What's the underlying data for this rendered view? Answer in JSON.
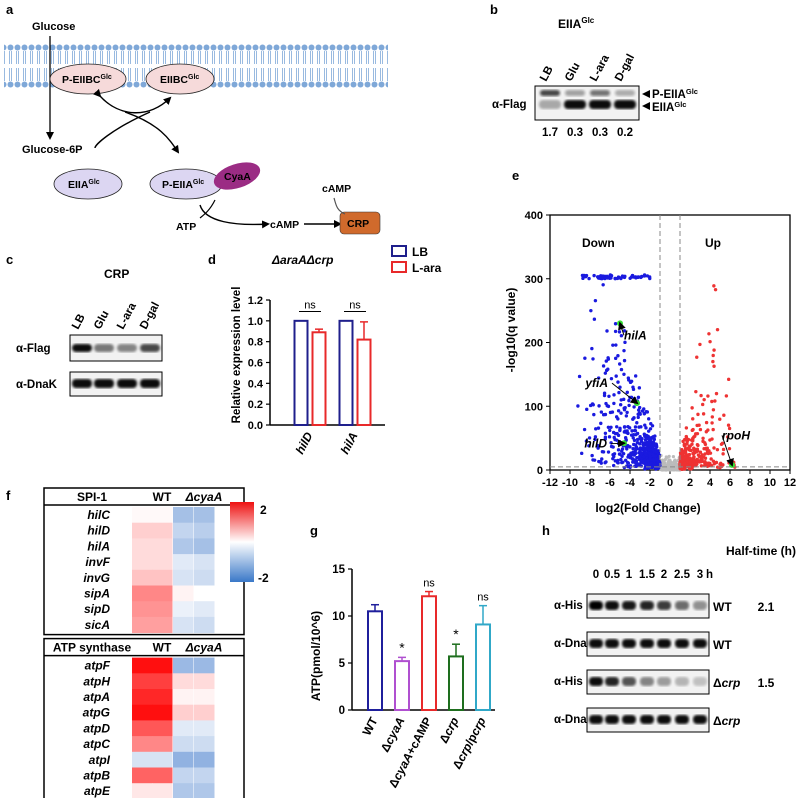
{
  "panel_letters": [
    "a",
    "b",
    "c",
    "d",
    "e",
    "f",
    "g",
    "h"
  ],
  "a": {
    "glucose": "Glucose",
    "glucose6p": "Glucose-6P",
    "p_eiibc": "P-EIIBC",
    "eiibc": "EIIBC",
    "eiia": "EIIA",
    "p_eiia": "P-EIIA",
    "sup": "Glc",
    "cyaa": "CyaA",
    "atp": "ATP",
    "camp": "cAMP",
    "camp2": "cAMP",
    "crp": "CRP"
  },
  "b": {
    "title": "EIIA",
    "title_sup": "Glc",
    "lanes": [
      "LB",
      "Glu",
      "L-ara",
      "D-gal"
    ],
    "antibody": "α-Flag",
    "band_upper": "P-EIIA",
    "band_lower": "EIIA",
    "band_sup": "Glc",
    "ratios": [
      "1.7",
      "0.3",
      "0.3",
      "0.2"
    ]
  },
  "c": {
    "title": "CRP",
    "lanes": [
      "LB",
      "Glu",
      "L-ara",
      "D-gal"
    ],
    "antibodies": [
      "α-Flag",
      "α-DnaK"
    ]
  },
  "d": {
    "chart_data": {
      "type": "bar",
      "title": "ΔaraAΔcrp",
      "ylabel": "Relative expression level",
      "categories": [
        "hilD",
        "hilA"
      ],
      "series": [
        {
          "name": "LB",
          "values": [
            1.0,
            1.0
          ],
          "errors": [
            0.0,
            0.0
          ],
          "color": "#1f1f8c"
        },
        {
          "name": "L-ara",
          "values": [
            0.89,
            0.82
          ],
          "errors": [
            0.03,
            0.17
          ],
          "color": "#e8292a"
        }
      ],
      "ylim": [
        0,
        1.2
      ],
      "yticks": [
        "0.0",
        "0.2",
        "0.4",
        "0.6",
        "0.8",
        "1.0",
        "1.2"
      ],
      "annotations": [
        "ns",
        "ns"
      ]
    }
  },
  "e": {
    "chart_data": {
      "type": "scatter",
      "xlabel": "log2(Fold Change)",
      "ylabel": "-log10(q value)",
      "xlim": [
        -12,
        12
      ],
      "ylim": [
        0,
        400
      ],
      "xticks": [
        "-12",
        "-10",
        "-8",
        "-6",
        "-4",
        "-2",
        "0",
        "2",
        "4",
        "6",
        "8",
        "10",
        "12"
      ],
      "yticks": [
        "0",
        "100",
        "200",
        "300",
        "400"
      ],
      "regions": [
        "Down",
        "Up"
      ],
      "thresholds": {
        "fold_change": [
          -1,
          1
        ],
        "q": 5
      },
      "highlighted_genes": [
        {
          "name": "hilA",
          "x": -5.0,
          "y": 230
        },
        {
          "name": "yfiA",
          "x": -3.3,
          "y": 105
        },
        {
          "name": "hilD",
          "x": -4.6,
          "y": 42
        },
        {
          "name": "rpoH",
          "x": 6.2,
          "y": 8
        }
      ],
      "colors": {
        "down": "#1a1adf",
        "up": "#ee3333",
        "ns": "#bbbbbb",
        "highlight": "#33dd33"
      }
    }
  },
  "f": {
    "groups": [
      {
        "title": "SPI-1",
        "genes": [
          "hilC",
          "hilD",
          "hilA",
          "invF",
          "invG",
          "sipA",
          "sipD",
          "sicA"
        ]
      },
      {
        "title": "ATP synthase",
        "genes": [
          "atpF",
          "atpH",
          "atpA",
          "atpG",
          "atpD",
          "atpC",
          "atpI",
          "atpB",
          "atpE"
        ]
      }
    ],
    "col_wt": "WT",
    "col_mut": "ΔcyaA",
    "scale_max": "2",
    "scale_min": "-2",
    "values": [
      [
        0.05,
        0.05,
        -0.9,
        -0.9
      ],
      [
        0.4,
        0.4,
        -0.6,
        -0.7
      ],
      [
        0.3,
        0.3,
        -0.8,
        -0.9
      ],
      [
        0.3,
        0.3,
        -0.3,
        -0.4
      ],
      [
        0.5,
        0.5,
        -0.4,
        -0.5
      ],
      [
        1.0,
        1.0,
        0.1,
        0.0
      ],
      [
        0.9,
        0.9,
        -0.2,
        -0.3
      ],
      [
        0.8,
        0.8,
        -0.4,
        -0.5
      ],
      [
        2.0,
        2.0,
        -1.0,
        -1.0
      ],
      [
        1.6,
        1.6,
        0.3,
        0.3
      ],
      [
        1.8,
        1.8,
        0.1,
        0.1
      ],
      [
        2.0,
        2.0,
        0.4,
        0.4
      ],
      [
        1.4,
        1.4,
        -0.3,
        -0.3
      ],
      [
        1.0,
        1.0,
        -0.5,
        -0.5
      ],
      [
        -0.4,
        -0.4,
        -1.1,
        -1.1
      ],
      [
        1.3,
        1.3,
        -0.6,
        -0.6
      ],
      [
        0.2,
        0.2,
        -0.8,
        -0.8
      ]
    ]
  },
  "g": {
    "chart_data": {
      "type": "bar",
      "ylabel": "ATP(pmol/10^6)",
      "categories": [
        "WT",
        "ΔcyaA",
        "ΔcyaA+cAMP",
        "Δcrp",
        "Δcrp/pcrp"
      ],
      "values": [
        10.5,
        5.2,
        12.1,
        5.7,
        9.1
      ],
      "errors": [
        0.7,
        0.4,
        0.5,
        1.3,
        2.0
      ],
      "colors": [
        "#1f1f9c",
        "#b050d0",
        "#e8292a",
        "#1e6e1e",
        "#30a8c8"
      ],
      "annotations": [
        "",
        "*",
        "ns",
        "*",
        "ns"
      ],
      "ylim": [
        0,
        15
      ],
      "yticks": [
        "0",
        "5",
        "10",
        "15"
      ]
    }
  },
  "h": {
    "timepoints": [
      "0",
      "0.5",
      "1",
      "1.5",
      "2",
      "2.5",
      "3"
    ],
    "time_unit": "h",
    "halftime_header": "Half-time (h)",
    "rows": [
      {
        "antibody": "α-His",
        "strain": "WT",
        "halftime": "2.1"
      },
      {
        "antibody": "α-DnaK",
        "strain": "WT",
        "halftime": ""
      },
      {
        "antibody": "α-His",
        "strain": "Δcrp",
        "halftime": "1.5"
      },
      {
        "antibody": "α-DnaK",
        "strain": "Δcrp",
        "halftime": ""
      }
    ]
  }
}
